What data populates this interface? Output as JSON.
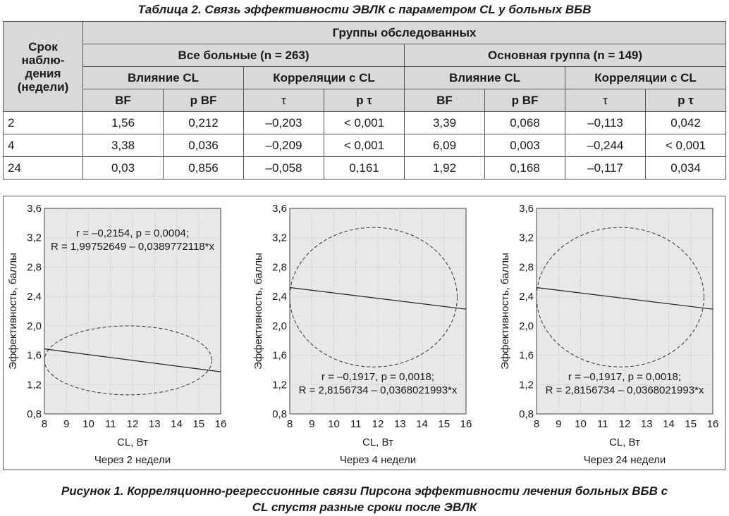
{
  "table": {
    "caption": "Таблица 2. Связь эффективности ЭВЛК с параметром CL у больных ВБВ",
    "header_period": "Срок наблю-дения (недели)",
    "header_groups": "Группы обследованных",
    "group_all": "Все больные (n = 263)",
    "group_main": "Основная группа (n = 149)",
    "influence": "Влияние CL",
    "correlation": "Корреляции с CL",
    "sub_bf": "BF",
    "sub_pbf": "p BF",
    "sub_tau": "τ",
    "sub_ptau": "p τ",
    "rows": [
      {
        "week": "2",
        "c1": "1,56",
        "c2": "0,212",
        "c3": "–0,203",
        "c4": "< 0,001",
        "c5": "3,39",
        "c6": "0,068",
        "c7": "–0,113",
        "c8": "0,042"
      },
      {
        "week": "4",
        "c1": "3,38",
        "c2": "0,036",
        "c3": "–0,209",
        "c4": "< 0,001",
        "c5": "6,09",
        "c6": "0,003",
        "c7": "–0,244",
        "c8": "< 0,001"
      },
      {
        "week": "24",
        "c1": "0,03",
        "c2": "0,856",
        "c3": "–0,058",
        "c4": "0,161",
        "c5": "1,92",
        "c6": "0,168",
        "c7": "–0,117",
        "c8": "0,034"
      }
    ]
  },
  "chart_data": [
    {
      "type": "scatter",
      "title": "Через 2 недели",
      "xlabel": "CL, Вт",
      "ylabel": "Эффективность, баллы",
      "xlim": [
        8,
        16
      ],
      "ylim": [
        0.8,
        3.6
      ],
      "x_ticks": [
        "8",
        "9",
        "10",
        "11",
        "12",
        "13",
        "14",
        "15",
        "16"
      ],
      "y_ticks": [
        "0,8",
        "1,2",
        "1,6",
        "2,0",
        "2,4",
        "2,8",
        "3,2",
        "3,6"
      ],
      "annotation": [
        "r = –0,2154, p = 0,0004;",
        "R = 1,99752649 – 0,0389772118*x"
      ],
      "regression": {
        "intercept": 1.99752649,
        "slope": -0.0389772118
      },
      "ellipse": {
        "cx": 11.8,
        "cy": 1.53,
        "rx": 3.8,
        "ry": 0.47
      }
    },
    {
      "type": "scatter",
      "title": "Через 4 недели",
      "xlabel": "CL, Вт",
      "ylabel": "Эффективность, баллы",
      "xlim": [
        8,
        16
      ],
      "ylim": [
        0.8,
        3.6
      ],
      "x_ticks": [
        "8",
        "9",
        "10",
        "11",
        "12",
        "13",
        "14",
        "15",
        "16"
      ],
      "y_ticks": [
        "0,8",
        "1,2",
        "1,6",
        "2,0",
        "2,4",
        "2,8",
        "3,2",
        "3,6"
      ],
      "annotation": [
        "r = –0,1917, p = 0,0018;",
        "R = 2,8156734 – 0,0368021993*x"
      ],
      "regression": {
        "intercept": 2.8156734,
        "slope": -0.0368021993
      },
      "ellipse": {
        "cx": 11.8,
        "cy": 2.39,
        "rx": 3.8,
        "ry": 0.95
      }
    },
    {
      "type": "scatter",
      "title": "Через 24 недели",
      "xlabel": "CL, Вт",
      "ylabel": "Эффективность, баллы",
      "xlim": [
        8,
        16
      ],
      "ylim": [
        0.8,
        3.6
      ],
      "x_ticks": [
        "8",
        "9",
        "10",
        "11",
        "12",
        "13",
        "14",
        "15",
        "16"
      ],
      "y_ticks": [
        "0,8",
        "1,2",
        "1,6",
        "2,0",
        "2,4",
        "2,8",
        "3,2",
        "3,6"
      ],
      "annotation": [
        "r = –0,1917, p = 0,0018;",
        "R = 2,8156734 – 0,0368021993*x"
      ],
      "regression": {
        "intercept": 2.8156734,
        "slope": -0.0368021993
      },
      "ellipse": {
        "cx": 11.8,
        "cy": 2.39,
        "rx": 3.8,
        "ry": 0.95
      }
    }
  ],
  "figure_caption_line1": "Рисунок 1. Корреляционно-регрессионные связи Пирсона эффективности лечения больных ВБВ с",
  "figure_caption_line2": "CL спустя разные сроки после ЭВЛК"
}
